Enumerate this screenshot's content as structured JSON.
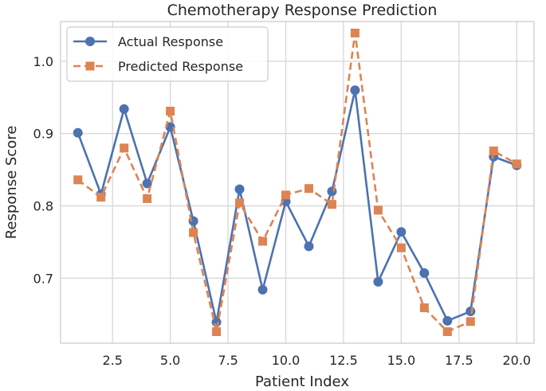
{
  "chart_data": {
    "type": "line",
    "title": "Chemotherapy Response Prediction",
    "xlabel": "Patient Index",
    "ylabel": "Response Score",
    "x": [
      1,
      2,
      3,
      4,
      5,
      6,
      7,
      8,
      9,
      10,
      11,
      12,
      13,
      14,
      15,
      16,
      17,
      18,
      19,
      20
    ],
    "xlim": [
      0.25,
      20.75
    ],
    "ylim": [
      0.61,
      1.055
    ],
    "xticks": [
      2.5,
      5.0,
      7.5,
      10.0,
      12.5,
      15.0,
      17.5,
      20.0
    ],
    "xtick_labels": [
      "2.5",
      "5.0",
      "7.5",
      "10.0",
      "12.5",
      "15.0",
      "17.5",
      "20.0"
    ],
    "yticks": [
      0.7,
      0.8,
      0.9,
      1.0
    ],
    "ytick_labels": [
      "0.7",
      "0.8",
      "0.9",
      "1.0"
    ],
    "grid": true,
    "legend_position": "top-left",
    "series": [
      {
        "name": "Actual Response",
        "color": "#4c72b0",
        "line_style": "solid",
        "marker": "circle",
        "values": [
          0.901,
          0.816,
          0.934,
          0.831,
          0.909,
          0.779,
          0.639,
          0.823,
          0.684,
          0.806,
          0.744,
          0.82,
          0.96,
          0.695,
          0.764,
          0.707,
          0.641,
          0.654,
          0.868,
          0.856
        ]
      },
      {
        "name": "Predicted Response",
        "color": "#dd8452",
        "line_style": "dashed",
        "marker": "square",
        "values": [
          0.836,
          0.812,
          0.88,
          0.81,
          0.931,
          0.763,
          0.626,
          0.804,
          0.751,
          0.815,
          0.824,
          0.802,
          1.039,
          0.794,
          0.742,
          0.659,
          0.626,
          0.64,
          0.876,
          0.858
        ]
      }
    ]
  }
}
